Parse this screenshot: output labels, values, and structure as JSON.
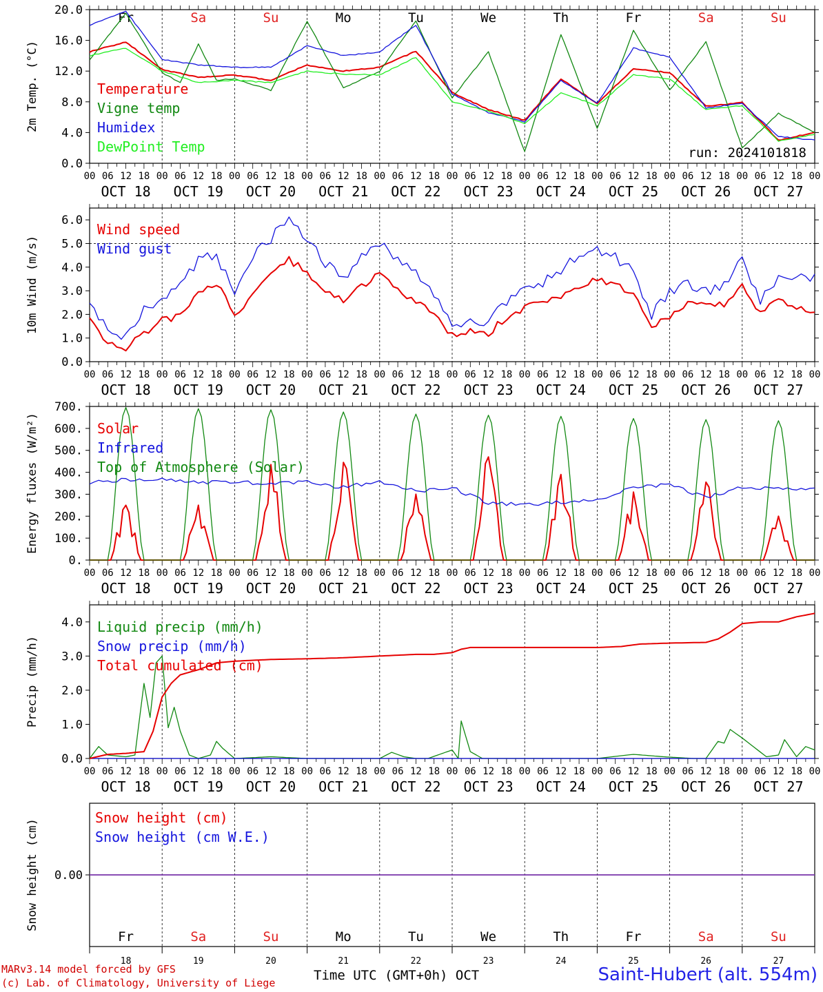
{
  "run_label": "run: 2024101818",
  "days_short": [
    "Fr",
    "Sa",
    "Su",
    "Mo",
    "Tu",
    "We",
    "Th",
    "Fr",
    "Sa",
    "Su"
  ],
  "date_labels": [
    "OCT 18",
    "OCT 19",
    "OCT 20",
    "OCT 21",
    "OCT 22",
    "OCT 23",
    "OCT 24",
    "OCT 25",
    "OCT 26",
    "OCT 27"
  ],
  "day_numbers": [
    "18",
    "19",
    "20",
    "21",
    "22",
    "23",
    "24",
    "25",
    "26",
    "27"
  ],
  "hour_labels": [
    "00",
    "06",
    "12",
    "18"
  ],
  "footer": {
    "credit_line1": "MARv3.14 model forced by GFS",
    "credit_line2": "(c) Lab. of Climatology, University of Liege",
    "xaxis_title": "Time UTC (GMT+0h) OCT",
    "station": "Saint-Hubert (alt. 554m)"
  },
  "colors": {
    "red": "#e60000",
    "darkgreen": "#118811",
    "blue": "#1515dd",
    "lightgreen": "#22ee22",
    "purple": "#7733aa",
    "weekend": "#e02020",
    "weekday": "#000000"
  },
  "chart_data": [
    {
      "type": "line",
      "ylabel": "2m Temp. (°C)",
      "ylim": [
        0,
        20
      ],
      "yticks": [
        "0.0",
        "4.0",
        "8.0",
        "12.0",
        "16.0",
        "20.0"
      ],
      "x_unit": "hours since 2024-10-18 00 UTC",
      "xlim": [
        0,
        240
      ],
      "series": [
        {
          "name": "Temperature",
          "color": "red",
          "x": [
            0,
            12,
            24,
            36,
            48,
            60,
            72,
            84,
            96,
            108,
            120,
            132,
            144,
            156,
            168,
            180,
            192,
            204,
            216,
            228,
            240
          ],
          "y": [
            14.5,
            15.8,
            12.2,
            11.2,
            11.5,
            10.8,
            12.8,
            12.0,
            12.5,
            14.6,
            9.2,
            7.0,
            5.6,
            11.0,
            7.8,
            12.3,
            11.8,
            7.4,
            7.9,
            3.0,
            4.0
          ]
        },
        {
          "name": "Vigne temp",
          "color": "darkgreen",
          "x": [
            0,
            12,
            24,
            30,
            36,
            42,
            48,
            60,
            72,
            84,
            96,
            108,
            120,
            132,
            144,
            156,
            168,
            180,
            192,
            204,
            216,
            228,
            240
          ],
          "y": [
            13.5,
            19.5,
            11.8,
            10.5,
            15.5,
            10.8,
            11.0,
            9.5,
            18.5,
            9.8,
            12.0,
            18.5,
            8.5,
            14.5,
            1.5,
            16.8,
            4.5,
            17.3,
            9.5,
            15.8,
            2.0,
            6.5,
            4.0
          ]
        },
        {
          "name": "Humidex",
          "color": "blue",
          "x": [
            0,
            12,
            24,
            36,
            48,
            60,
            72,
            84,
            96,
            108,
            120,
            132,
            144,
            156,
            168,
            180,
            192,
            204,
            216,
            228,
            240
          ],
          "y": [
            18.0,
            19.8,
            13.5,
            12.8,
            12.5,
            12.5,
            15.3,
            14.0,
            14.5,
            18.0,
            9.0,
            6.6,
            5.4,
            10.8,
            7.8,
            15.0,
            13.8,
            7.2,
            7.8,
            3.5,
            3.0
          ]
        },
        {
          "name": "DewPoint Temp",
          "color": "lightgreen",
          "x": [
            0,
            12,
            24,
            36,
            48,
            60,
            72,
            84,
            96,
            108,
            120,
            132,
            144,
            156,
            168,
            180,
            192,
            204,
            216,
            228,
            240
          ],
          "y": [
            14.0,
            15.0,
            12.0,
            10.5,
            10.8,
            10.5,
            12.0,
            11.6,
            11.5,
            13.8,
            8.0,
            6.8,
            5.2,
            9.2,
            7.5,
            11.5,
            11.0,
            7.0,
            7.5,
            2.9,
            3.8
          ]
        }
      ]
    },
    {
      "type": "line",
      "ylabel": "10m Wind (m/s)",
      "ylim": [
        0,
        6.5
      ],
      "yticks": [
        "0.0",
        "1.0",
        "2.0",
        "3.0",
        "4.0",
        "5.0",
        "6.0"
      ],
      "reference_line": 5.0,
      "series": [
        {
          "name": "Wind speed",
          "color": "red",
          "x": [
            0,
            6,
            12,
            18,
            24,
            30,
            36,
            42,
            48,
            54,
            60,
            66,
            72,
            78,
            84,
            90,
            96,
            102,
            108,
            114,
            120,
            126,
            132,
            138,
            144,
            150,
            156,
            162,
            168,
            174,
            180,
            186,
            192,
            198,
            204,
            210,
            216,
            222,
            228,
            234,
            240
          ],
          "y": [
            2.0,
            0.7,
            0.6,
            1.2,
            1.8,
            1.9,
            3.0,
            3.3,
            2.0,
            2.8,
            3.8,
            4.3,
            3.8,
            3.0,
            2.6,
            3.2,
            3.7,
            3.0,
            2.6,
            2.1,
            1.1,
            1.3,
            1.2,
            1.9,
            2.3,
            2.5,
            2.8,
            3.2,
            3.5,
            3.2,
            2.9,
            1.5,
            1.9,
            2.5,
            2.3,
            2.4,
            3.2,
            2.0,
            2.6,
            2.3,
            2.0
          ]
        },
        {
          "name": "Wind gust",
          "color": "blue",
          "x": [
            0,
            6,
            12,
            18,
            24,
            30,
            36,
            42,
            48,
            54,
            60,
            66,
            72,
            78,
            84,
            90,
            96,
            102,
            108,
            114,
            120,
            126,
            132,
            138,
            144,
            150,
            156,
            162,
            168,
            174,
            180,
            186,
            192,
            198,
            204,
            210,
            216,
            222,
            228,
            234,
            240
          ],
          "y": [
            2.7,
            1.2,
            1.0,
            2.2,
            2.5,
            3.3,
            4.3,
            4.5,
            2.8,
            4.5,
            5.2,
            6.1,
            5.2,
            4.2,
            3.5,
            4.4,
            5.1,
            4.2,
            3.8,
            2.8,
            1.5,
            1.7,
            1.6,
            2.6,
            3.0,
            3.3,
            3.9,
            4.5,
            4.7,
            4.4,
            3.8,
            2.0,
            2.9,
            3.3,
            3.0,
            3.2,
            4.4,
            2.6,
            3.5,
            3.7,
            3.6
          ]
        }
      ]
    },
    {
      "type": "line",
      "ylabel": "Energy fluxes (W/m²)",
      "ylim": [
        0,
        700
      ],
      "yticks": [
        "0.",
        "100.",
        "200.",
        "300.",
        "400.",
        "500.",
        "600.",
        "700."
      ],
      "series": [
        {
          "name": "Solar",
          "color": "red",
          "peaks": [
            250,
            250,
            435,
            445,
            300,
            470,
            390,
            310,
            355,
            200
          ]
        },
        {
          "name": "Infrared",
          "color": "blue",
          "x": [
            0,
            12,
            24,
            36,
            48,
            60,
            72,
            84,
            96,
            108,
            120,
            132,
            144,
            156,
            168,
            180,
            192,
            204,
            216,
            228,
            240
          ],
          "y": [
            355,
            365,
            365,
            355,
            355,
            350,
            355,
            330,
            360,
            315,
            330,
            260,
            250,
            265,
            270,
            335,
            340,
            285,
            335,
            325,
            325
          ]
        },
        {
          "name": "Top of Atmosphere (Solar)",
          "color": "darkgreen",
          "peaks": [
            695,
            690,
            685,
            675,
            665,
            660,
            655,
            645,
            640,
            635
          ]
        }
      ]
    },
    {
      "type": "line",
      "ylabel": "Precip (mm/h)",
      "ylim": [
        0,
        4.5
      ],
      "yticks": [
        "0.0",
        "1.0",
        "2.0",
        "3.0",
        "4.0"
      ],
      "series": [
        {
          "name": "Liquid precip (mm/h)",
          "color": "darkgreen",
          "x": [
            0,
            3,
            6,
            12,
            15,
            18,
            20,
            22,
            24,
            26,
            28,
            30,
            33,
            36,
            40,
            42,
            44,
            48,
            60,
            72,
            84,
            96,
            100,
            104,
            108,
            112,
            120,
            122,
            123,
            126,
            130,
            144,
            168,
            180,
            190,
            200,
            204,
            208,
            210,
            212,
            216,
            224,
            228,
            230,
            234,
            237,
            240
          ],
          "y": [
            0.0,
            0.35,
            0.1,
            0.05,
            0.1,
            2.2,
            1.2,
            2.8,
            3.0,
            0.9,
            1.5,
            0.8,
            0.1,
            0.0,
            0.1,
            0.5,
            0.3,
            0.0,
            0.05,
            0.0,
            0.0,
            0.0,
            0.18,
            0.05,
            0.0,
            0.0,
            0.25,
            0.0,
            1.1,
            0.2,
            0.0,
            0.0,
            0.0,
            0.12,
            0.05,
            0.0,
            0.0,
            0.5,
            0.45,
            0.85,
            0.6,
            0.05,
            0.1,
            0.55,
            0.05,
            0.35,
            0.25
          ]
        },
        {
          "name": "Snow precip (mm/h)",
          "color": "blue",
          "x": [
            0,
            240
          ],
          "y": [
            0,
            0
          ]
        },
        {
          "name": "Total cumulated (cm)",
          "color": "red",
          "x": [
            0,
            6,
            12,
            18,
            21,
            24,
            27,
            30,
            36,
            42,
            48,
            60,
            72,
            84,
            96,
            108,
            114,
            120,
            123,
            126,
            132,
            144,
            156,
            168,
            176,
            182,
            192,
            204,
            208,
            212,
            216,
            222,
            228,
            234,
            240
          ],
          "y": [
            0.0,
            0.12,
            0.15,
            0.2,
            0.8,
            1.8,
            2.2,
            2.45,
            2.6,
            2.8,
            2.85,
            2.9,
            2.92,
            2.95,
            3.0,
            3.05,
            3.05,
            3.1,
            3.2,
            3.25,
            3.25,
            3.25,
            3.25,
            3.25,
            3.28,
            3.35,
            3.38,
            3.4,
            3.5,
            3.7,
            3.95,
            4.0,
            4.0,
            4.15,
            4.25
          ]
        }
      ]
    },
    {
      "type": "line",
      "ylabel": "Snow height (cm)",
      "yticks": [
        "0.00"
      ],
      "series": [
        {
          "name": "Snow height (cm)",
          "color": "red",
          "x": [
            0,
            240
          ],
          "y": [
            0,
            0
          ]
        },
        {
          "name": "Snow height (cm W.E.)",
          "color": "blue",
          "x": [
            0,
            240
          ],
          "y": [
            0,
            0
          ]
        }
      ]
    }
  ]
}
